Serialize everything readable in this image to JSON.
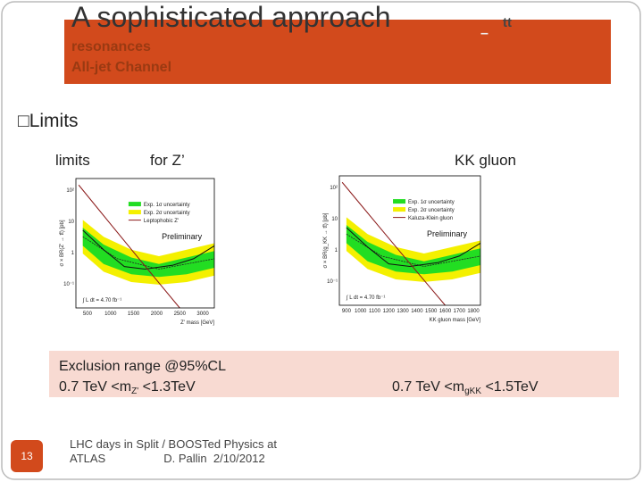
{
  "header": {
    "title": "A sophisticated approach",
    "symbol": "tt",
    "symbol_bar": "–",
    "subtitle": [
      "resonances",
      "All-jet Channel"
    ]
  },
  "bullet": "Limits",
  "labels": {
    "left": "limits",
    "middle": "for Z’",
    "right": "KK gluon"
  },
  "plots": [
    {
      "ylabel": "σ × BR(Z' → tt̄) [pb]",
      "xlabel": "Z' mass [GeV]",
      "xticks": [
        "500",
        "1000",
        "1500",
        "2000",
        "2500",
        "3000"
      ],
      "yticks": [
        "10²",
        "10",
        "1",
        "10⁻¹"
      ],
      "legend": [
        "Exp. 1σ uncertainty",
        "Exp. 2σ uncertainty",
        "Leptophobic Z'"
      ],
      "tag": "Preliminary",
      "lumi": "∫ L dt = 4.70 fb⁻¹"
    },
    {
      "ylabel": "σ × BR(g_KK → tt̄) [pb]",
      "xlabel": "KK gluon mass [GeV]",
      "xticks": [
        "900",
        "1000",
        "1100",
        "1200",
        "1300",
        "1400",
        "1500",
        "1600",
        "1700",
        "1800"
      ],
      "yticks": [
        "10²",
        "10",
        "1",
        "10⁻¹"
      ],
      "legend": [
        "Exp. 1σ uncertainty",
        "Exp. 2σ uncertainty",
        "Kaluza-Klein gluon"
      ],
      "tag": "Preliminary",
      "lumi": "∫ L dt = 4.70 fb⁻¹"
    }
  ],
  "exclusion": {
    "heading": "Exclusion range @95%CL",
    "left": {
      "pre": "0.7 TeV <m",
      "sub": "Z'",
      "post": " <1.3TeV"
    },
    "right": {
      "pre": "0.7 TeV <m",
      "sub": "gKK",
      "post": " <1.5TeV"
    }
  },
  "footer": {
    "page": "13",
    "lines": [
      "LHC days in Split / BOOSTed Physics at",
      "ATLAS                  D. Pallin  2/10/2012"
    ]
  }
}
